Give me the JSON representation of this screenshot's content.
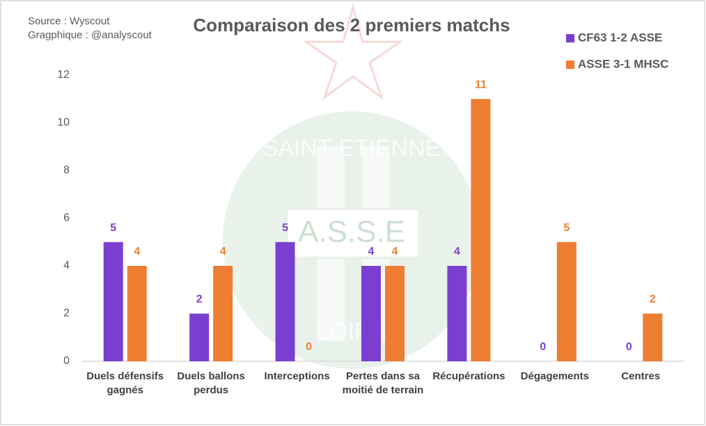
{
  "chart_data": {
    "type": "bar",
    "title": "Comparaison des 2 premiers matchs",
    "source": "Source : Wyscout",
    "credit": "Gragphique : @analyscout",
    "watermark": [
      "SAINT-ETIENNE",
      "A.S.S.E",
      "LOIRE"
    ],
    "categories": [
      "Duels défensifs gagnés",
      "Duels ballons perdus",
      "Interceptions",
      "Pertes dans sa moitié de terrain",
      "Récupérations",
      "Dégagements",
      "Centres"
    ],
    "series": [
      {
        "name": "CF63 1-2 ASSE",
        "color": "#7a3fd1",
        "values": [
          5,
          2,
          5,
          4,
          4,
          0,
          0
        ]
      },
      {
        "name": "ASSE 3-1 MHSC",
        "color": "#ed7d31",
        "values": [
          4,
          4,
          0,
          4,
          11,
          5,
          2
        ]
      }
    ],
    "ylim": [
      0,
      12
    ],
    "yticks": [
      0,
      2,
      4,
      6,
      8,
      10,
      12
    ],
    "grid": false,
    "legend": "top-right",
    "data_labels": true
  }
}
